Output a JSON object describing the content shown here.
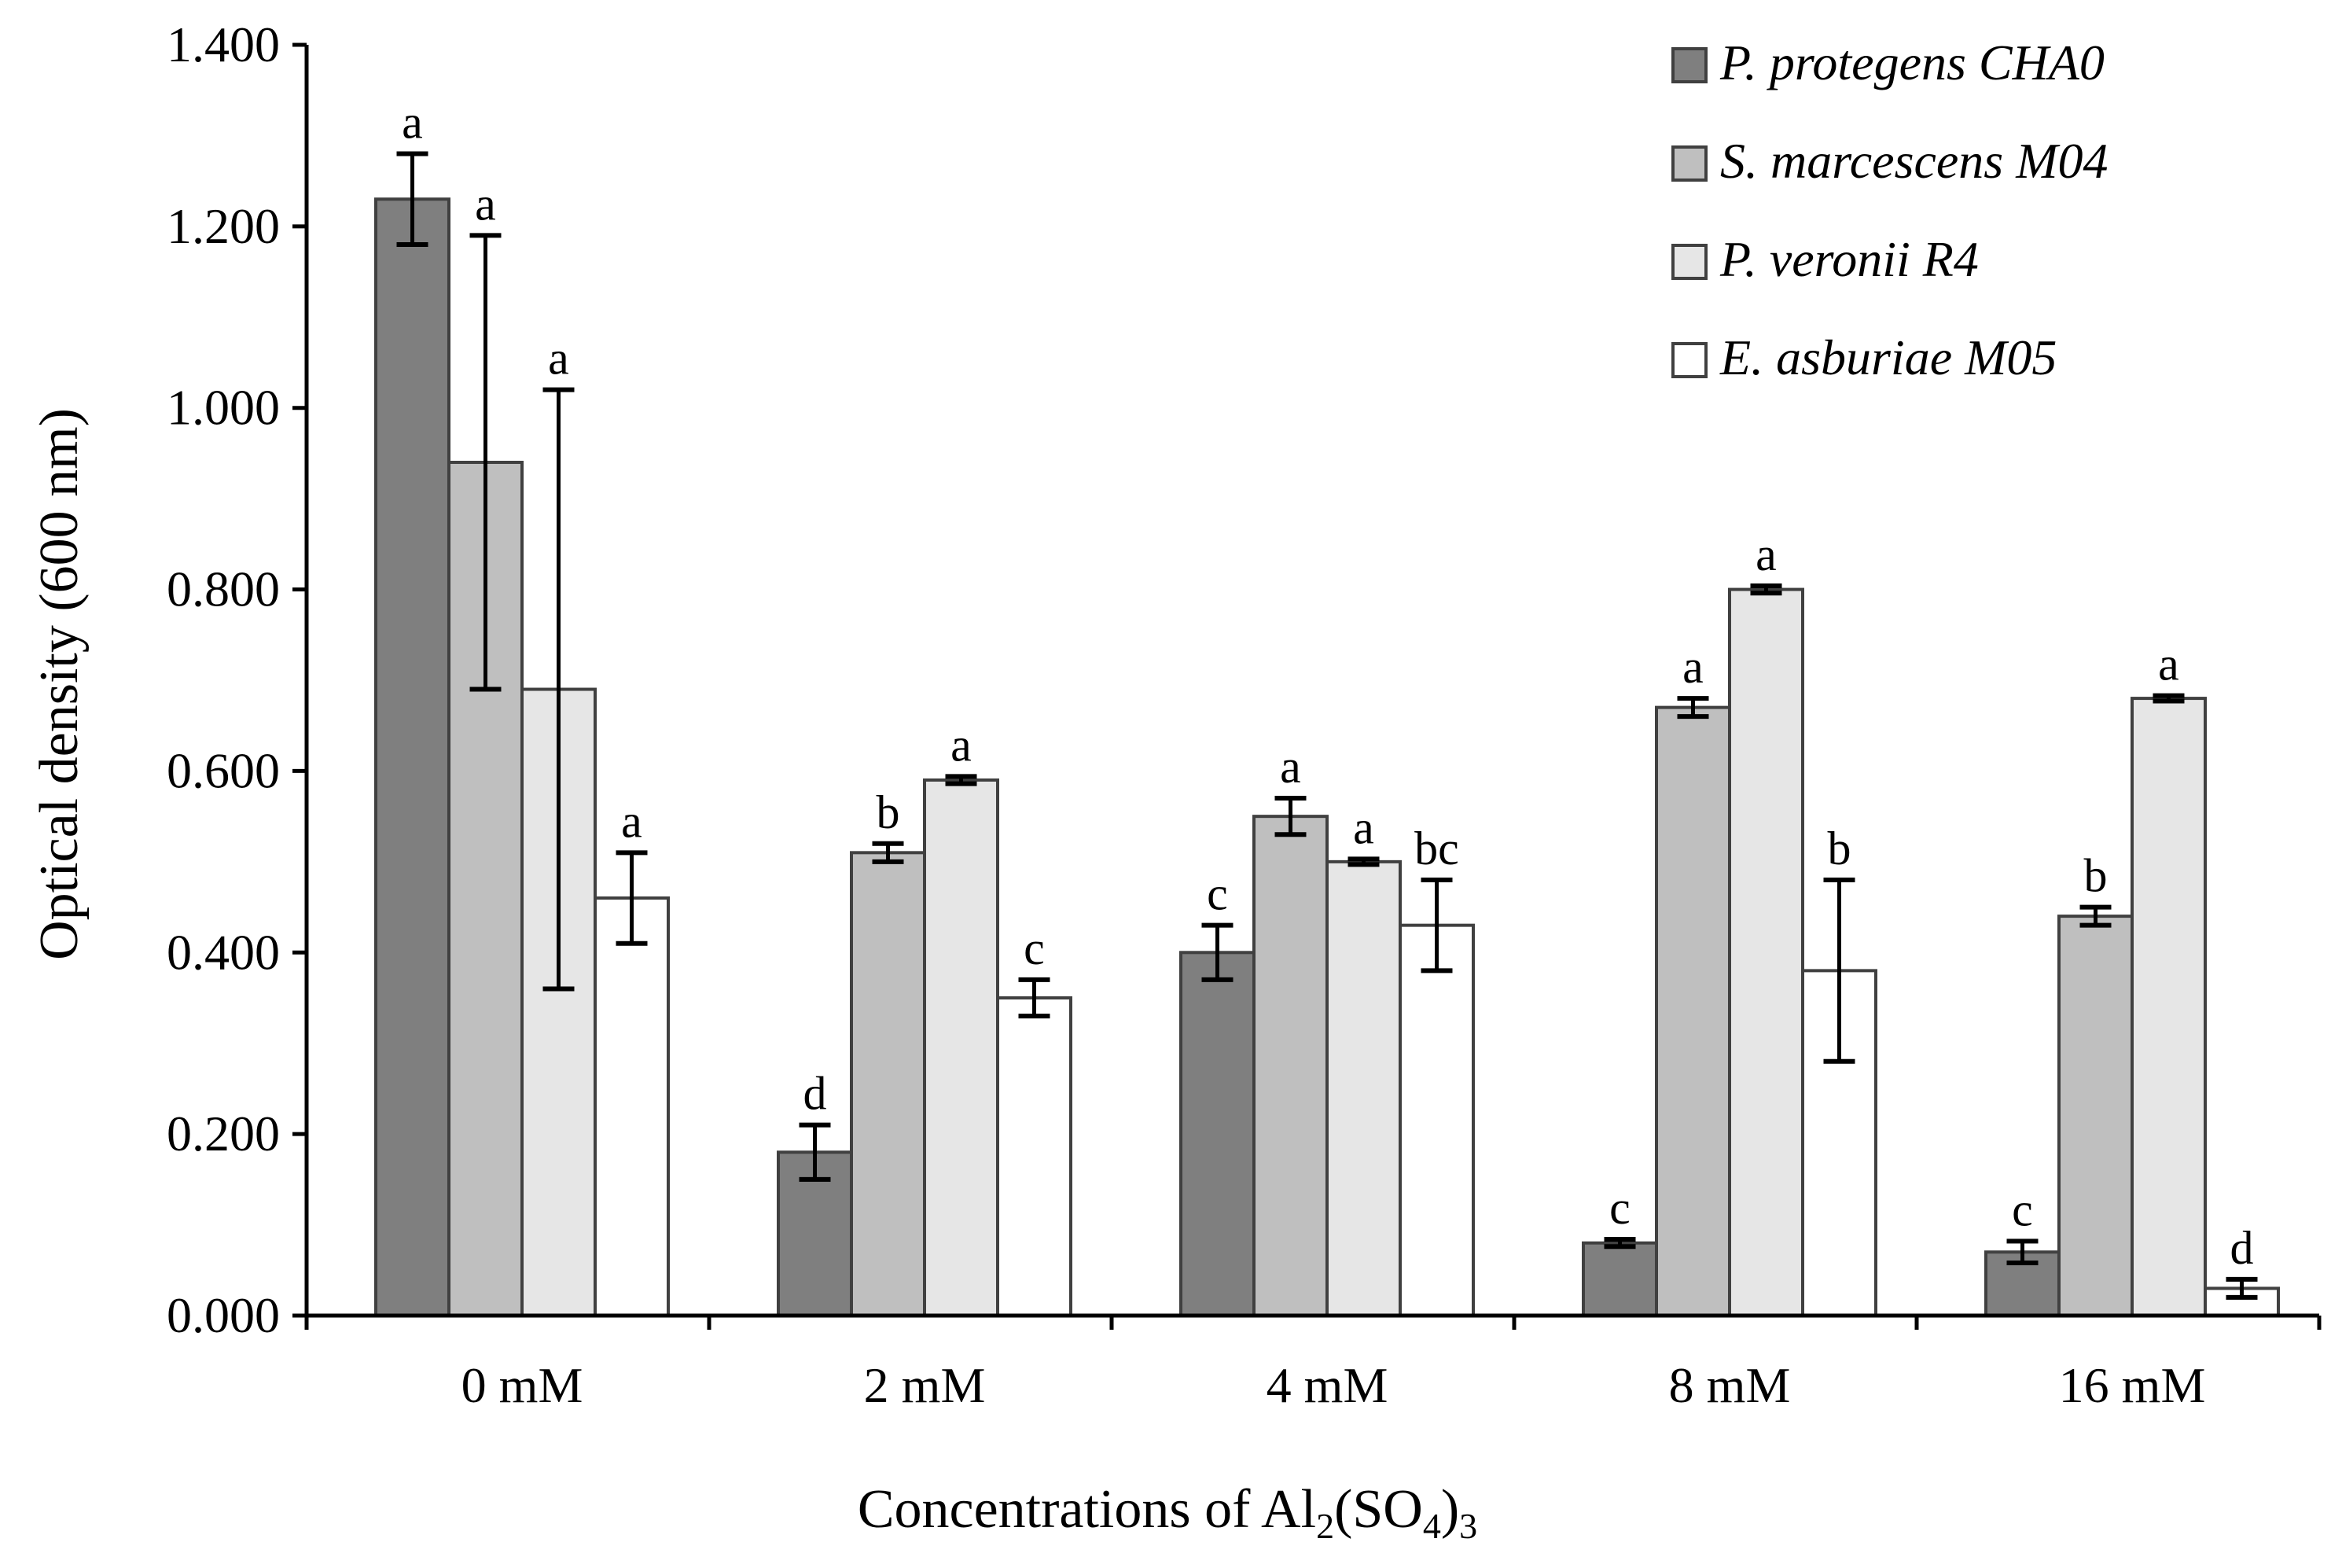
{
  "chart_data": {
    "type": "bar",
    "title": "",
    "xlabel": {
      "prefix": "Concentrations of Al",
      "sub1": "2",
      "middle": "(SO",
      "sub2": "4",
      "close": ")",
      "sub3": "3"
    },
    "ylabel": "Optical density (600 nm)",
    "ylim": [
      0,
      1.4
    ],
    "yticks": [
      {
        "value": 0.0,
        "label": "0.000"
      },
      {
        "value": 0.2,
        "label": "0.200"
      },
      {
        "value": 0.4,
        "label": "0.400"
      },
      {
        "value": 0.6,
        "label": "0.600"
      },
      {
        "value": 0.8,
        "label": "0.800"
      },
      {
        "value": 1.0,
        "label": "1.000"
      },
      {
        "value": 1.2,
        "label": "1.200"
      },
      {
        "value": 1.4,
        "label": "1.400"
      }
    ],
    "grid": false,
    "legend_position": "top-right",
    "categories": [
      "0 mM",
      "2 mM",
      "4 mM",
      "8 mM",
      "16 mM"
    ],
    "series": [
      {
        "name": "P. protegens CHA0",
        "color": "#7f7f7f",
        "values": [
          1.23,
          0.18,
          0.4,
          0.08,
          0.07
        ],
        "errors": [
          0.05,
          0.03,
          0.03,
          0.004,
          0.012
        ],
        "letters": [
          "a",
          "d",
          "c",
          "c",
          "c"
        ]
      },
      {
        "name": "S. marcescens M04",
        "color": "#bfbfbf",
        "values": [
          0.94,
          0.51,
          0.55,
          0.67,
          0.44
        ],
        "errors": [
          0.25,
          0.01,
          0.02,
          0.01,
          0.01
        ],
        "letters": [
          "a",
          "b",
          "a",
          "a",
          "b"
        ]
      },
      {
        "name": "P. veronii R4",
        "color": "#e6e6e6",
        "values": [
          0.69,
          0.59,
          0.5,
          0.8,
          0.68
        ],
        "errors": [
          0.33,
          0.004,
          0.003,
          0.004,
          0.003
        ],
        "letters": [
          "a",
          "a",
          "a",
          "a",
          "a"
        ]
      },
      {
        "name": "E. asburiae M05",
        "color": "#ffffff",
        "values": [
          0.46,
          0.35,
          0.43,
          0.38,
          0.03
        ],
        "errors": [
          0.05,
          0.02,
          0.05,
          0.1,
          0.01
        ],
        "letters": [
          "a",
          "c",
          "bc",
          "b",
          "d"
        ]
      }
    ]
  }
}
